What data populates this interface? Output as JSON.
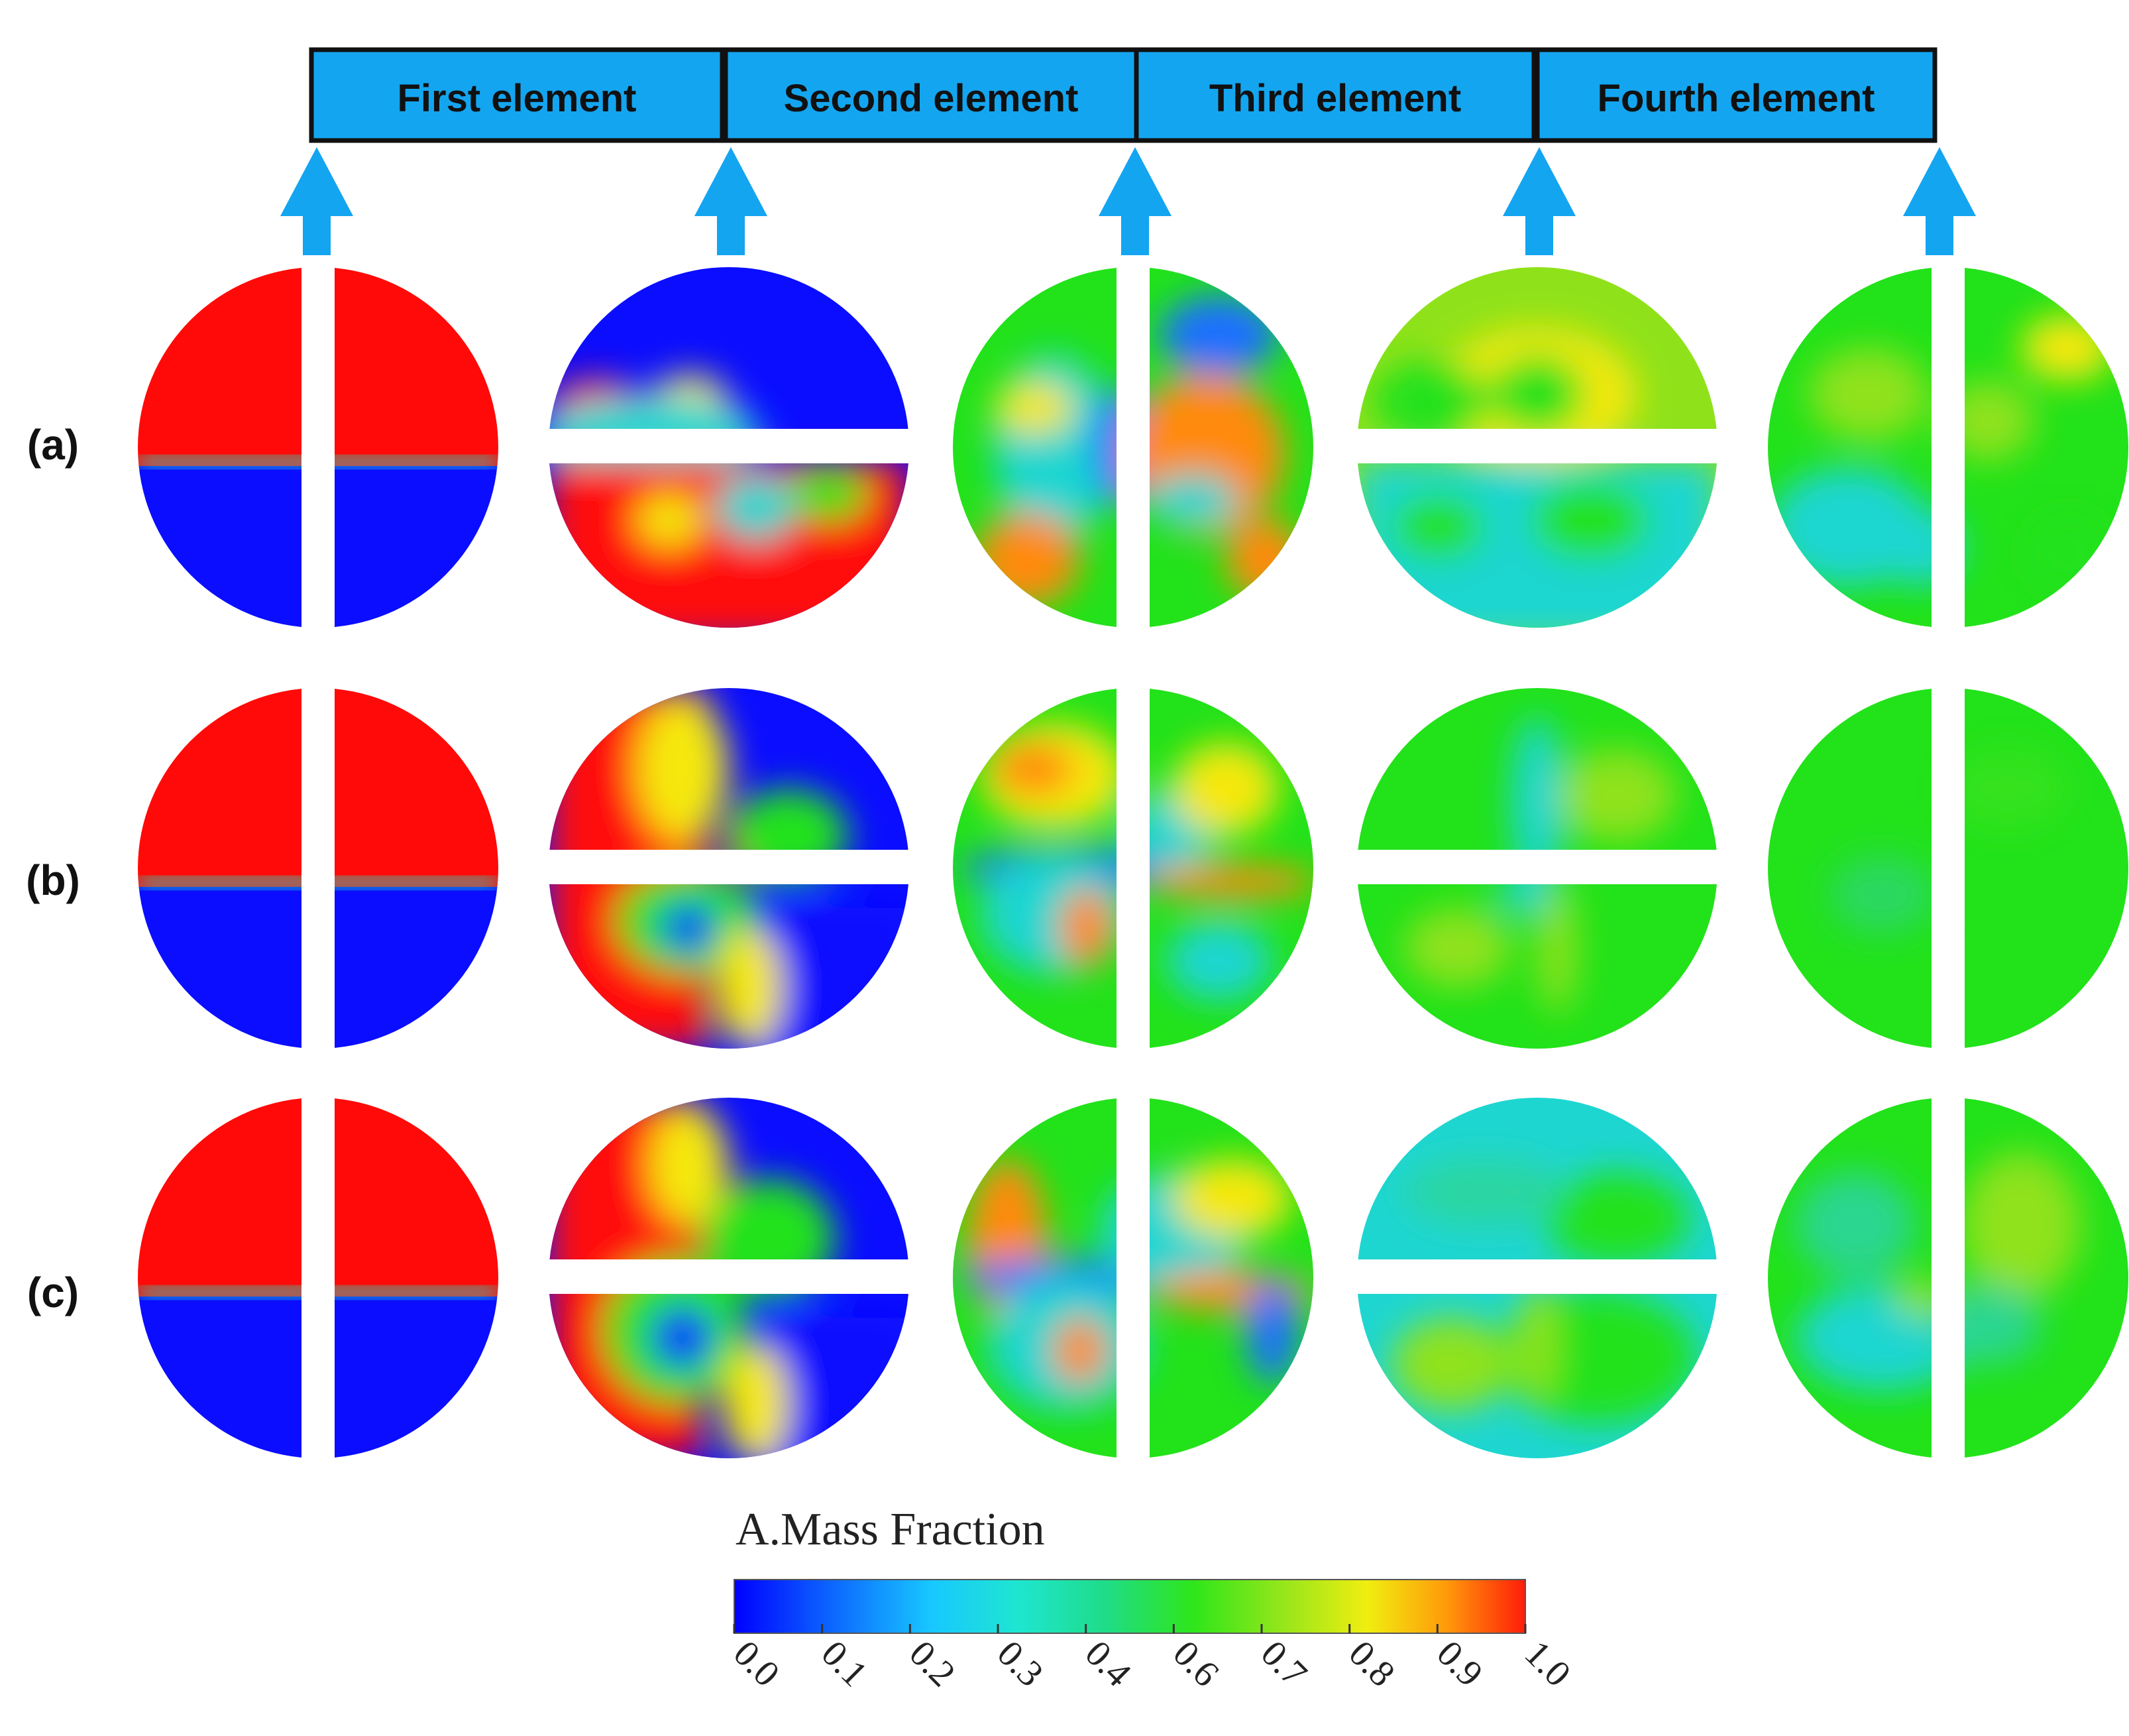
{
  "header": {
    "elements": [
      "First  element",
      "Second  element",
      "Third  element",
      "Fourth  element"
    ],
    "box_color": "#14a5f0",
    "border_color": "#111111",
    "arrow_color": "#14a5f0"
  },
  "rows": [
    {
      "label": "(a)"
    },
    {
      "label": "(b)"
    },
    {
      "label": "(c)"
    }
  ],
  "legend": {
    "title": "A.Mass Fraction",
    "ticks": [
      "0.0",
      "0.1",
      "0.2",
      "0.3",
      "0.4",
      "0.6",
      "0.7",
      "0.8",
      "0.9",
      "1.0"
    ],
    "colormap": [
      "#0000ff",
      "#0b5cff",
      "#18c8ff",
      "#1ee6d0",
      "#1fdc88",
      "#2ee61a",
      "#9be61a",
      "#f0ee10",
      "#ff9a0a",
      "#ff1d0a"
    ]
  },
  "colors": {
    "red": "#ff0a08",
    "blue": "#0a0dff",
    "green": "#22e21a",
    "lime": "#8fe21a",
    "cyan": "#1ed6d0",
    "yellow": "#f5e80f",
    "orange": "#ff8a10"
  }
}
